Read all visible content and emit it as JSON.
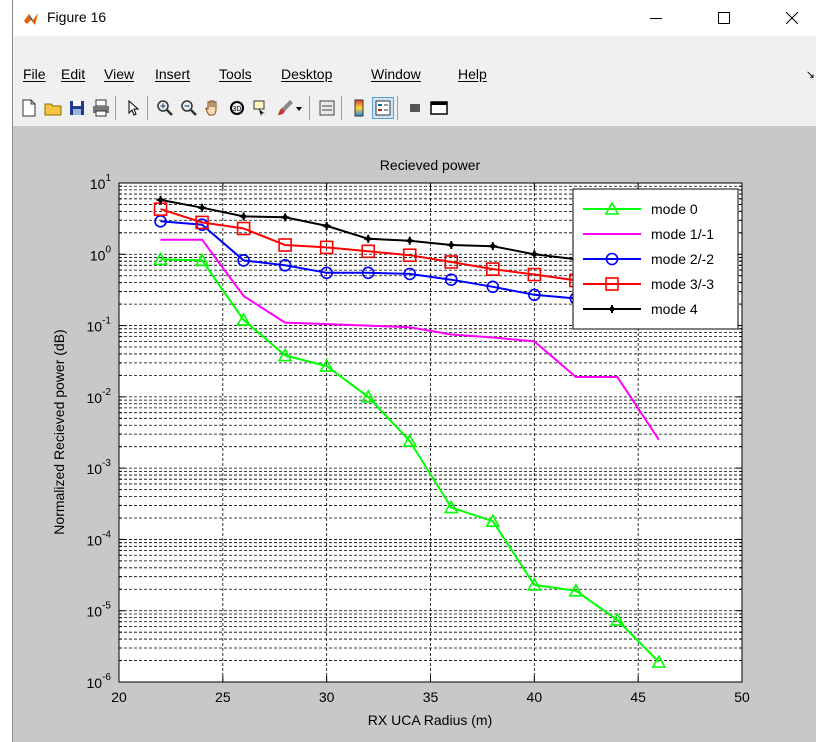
{
  "window": {
    "title": "Figure 16",
    "menu": [
      "File",
      "Edit",
      "View",
      "Insert",
      "Tools",
      "Desktop",
      "Window",
      "Help"
    ]
  },
  "toolbar": {
    "icons": [
      "new-figure-icon",
      "open-file-icon",
      "save-icon",
      "print-icon",
      "pointer-icon",
      "zoom-in-icon",
      "zoom-out-icon",
      "pan-hand-icon",
      "rotate-3d-icon",
      "data-cursor-icon",
      "brush-icon",
      "link-plot-icon",
      "colorbar-icon",
      "legend-icon",
      "hide-plot-tools-icon",
      "show-plot-tools-icon"
    ]
  },
  "chart_data": {
    "type": "line",
    "title": "Recieved power",
    "xlabel": "RX UCA Radius (m)",
    "ylabel": "Normalized Recieved power (dB)",
    "xlim": [
      20,
      50
    ],
    "ylim": [
      1e-06,
      10
    ],
    "yscale": "log",
    "xticks": [
      "20",
      "25",
      "30",
      "35",
      "40",
      "45",
      "50"
    ],
    "yticks": [
      {
        "base": "10",
        "exp": "1",
        "value": 10
      },
      {
        "base": "10",
        "exp": "0",
        "value": 1
      },
      {
        "base": "10",
        "exp": "-1",
        "value": 0.1
      },
      {
        "base": "10",
        "exp": "-2",
        "value": 0.01
      },
      {
        "base": "10",
        "exp": "-3",
        "value": 0.001
      },
      {
        "base": "10",
        "exp": "-4",
        "value": 0.0001
      },
      {
        "base": "10",
        "exp": "-5",
        "value": 1e-05
      },
      {
        "base": "10",
        "exp": "-6",
        "value": 1e-06
      }
    ],
    "grid": true,
    "legend_position": "top-right",
    "series": [
      {
        "name": "mode 0",
        "color": "#00ff00",
        "marker": "triangle",
        "x": [
          22,
          24,
          26,
          28,
          30,
          32,
          34,
          36,
          38,
          40,
          42,
          44,
          46
        ],
        "y": [
          0.85,
          0.82,
          0.12,
          0.038,
          0.027,
          0.01,
          0.0024,
          0.00028,
          0.00018,
          2.3e-05,
          1.9e-05,
          7.4e-06,
          1.9e-06
        ]
      },
      {
        "name": "mode 1/-1",
        "color": "#ff00ff",
        "marker": "none",
        "x": [
          22,
          24,
          26,
          28,
          30,
          32,
          34,
          36,
          38,
          40,
          42,
          44,
          46
        ],
        "y": [
          1.6,
          1.6,
          0.26,
          0.11,
          0.105,
          0.1,
          0.095,
          0.075,
          0.068,
          0.06,
          0.019,
          0.019,
          0.0025
        ]
      },
      {
        "name": "mode 2/-2",
        "color": "#0000ff",
        "marker": "circle",
        "x": [
          22,
          24,
          26,
          28,
          30,
          32,
          34,
          36,
          38,
          40,
          42
        ],
        "y": [
          2.9,
          2.6,
          0.82,
          0.7,
          0.55,
          0.55,
          0.53,
          0.44,
          0.35,
          0.27,
          0.24
        ]
      },
      {
        "name": "mode 3/-3",
        "color": "#ff0000",
        "marker": "square",
        "x": [
          22,
          24,
          26,
          28,
          30,
          32,
          34,
          36,
          38,
          40,
          42
        ],
        "y": [
          4.3,
          2.8,
          2.3,
          1.35,
          1.25,
          1.1,
          0.97,
          0.78,
          0.62,
          0.52,
          0.43
        ]
      },
      {
        "name": "mode 4",
        "color": "#000000",
        "marker": "star",
        "x": [
          22,
          24,
          26,
          28,
          30,
          32,
          34,
          36,
          38,
          40,
          42
        ],
        "y": [
          5.8,
          4.5,
          3.4,
          3.3,
          2.5,
          1.65,
          1.55,
          1.35,
          1.3,
          1.0,
          0.85
        ]
      }
    ]
  }
}
